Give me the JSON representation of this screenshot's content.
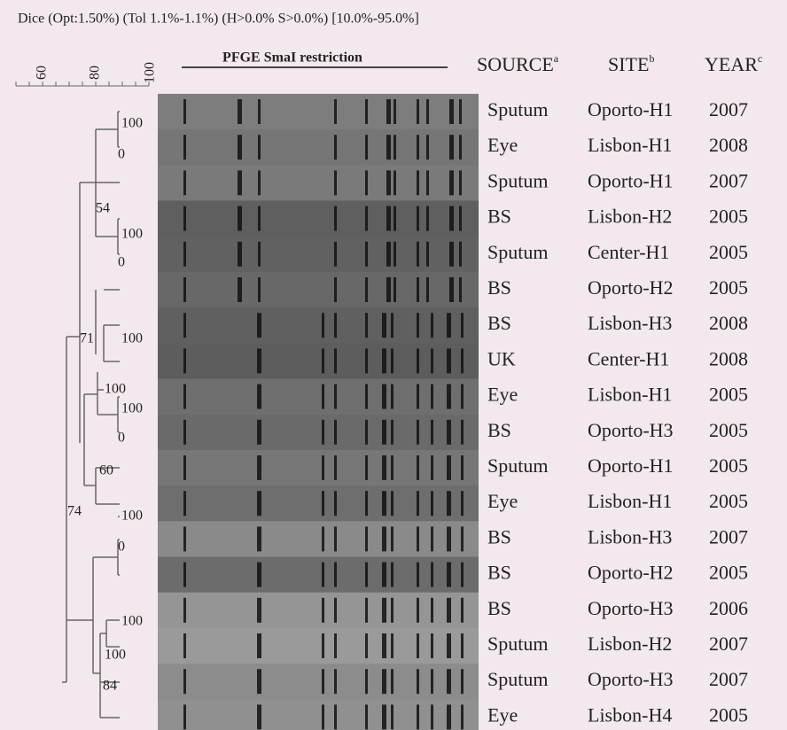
{
  "header": "Dice (Opt:1.50%) (Tol 1.1%-1.1%) (H>0.0% S>0.0%) [10.0%-95.0%]",
  "scale_labels": [
    "60",
    "80",
    "100"
  ],
  "gel_title": "PFGE SmaI restriction",
  "columns": {
    "source": "SOURCE",
    "source_note": "a",
    "site": "SITE",
    "site_note": "b",
    "year": "YEAR",
    "year_note": "c"
  },
  "rows": [
    [
      "Sputum",
      "Oporto-H1",
      "2007"
    ],
    [
      "Eye",
      "Lisbon-H1",
      "2008"
    ],
    [
      "Sputum",
      "Oporto-H1",
      "2007"
    ],
    [
      "BS",
      "Lisbon-H2",
      "2005"
    ],
    [
      "Sputum",
      "Center-H1",
      "2005"
    ],
    [
      "BS",
      "Oporto-H2",
      "2005"
    ],
    [
      "BS",
      "Lisbon-H3",
      "2008"
    ],
    [
      "UK",
      "Center-H1",
      "2008"
    ],
    [
      "Eye",
      "Lisbon-H1",
      "2005"
    ],
    [
      "BS",
      "Oporto-H3",
      "2005"
    ],
    [
      "Sputum",
      "Oporto-H1",
      "2005"
    ],
    [
      "Eye",
      "Lisbon-H1",
      "2005"
    ],
    [
      "BS",
      "Lisbon-H3",
      "2007"
    ],
    [
      "BS",
      "Oporto-H2",
      "2005"
    ],
    [
      "BS",
      "Oporto-H3",
      "2006"
    ],
    [
      "Sputum",
      "Lisbon-H2",
      "2007"
    ],
    [
      "Sputum",
      "Oporto-H3",
      "2007"
    ],
    [
      "Eye",
      "Lisbon-H4",
      "2005"
    ]
  ],
  "node_labels": [
    "100",
    "0",
    "54",
    "100",
    "0",
    "71",
    "100",
    "100",
    "100",
    "0",
    "60",
    "74",
    "100",
    "0",
    "100",
    "100",
    "84"
  ]
}
